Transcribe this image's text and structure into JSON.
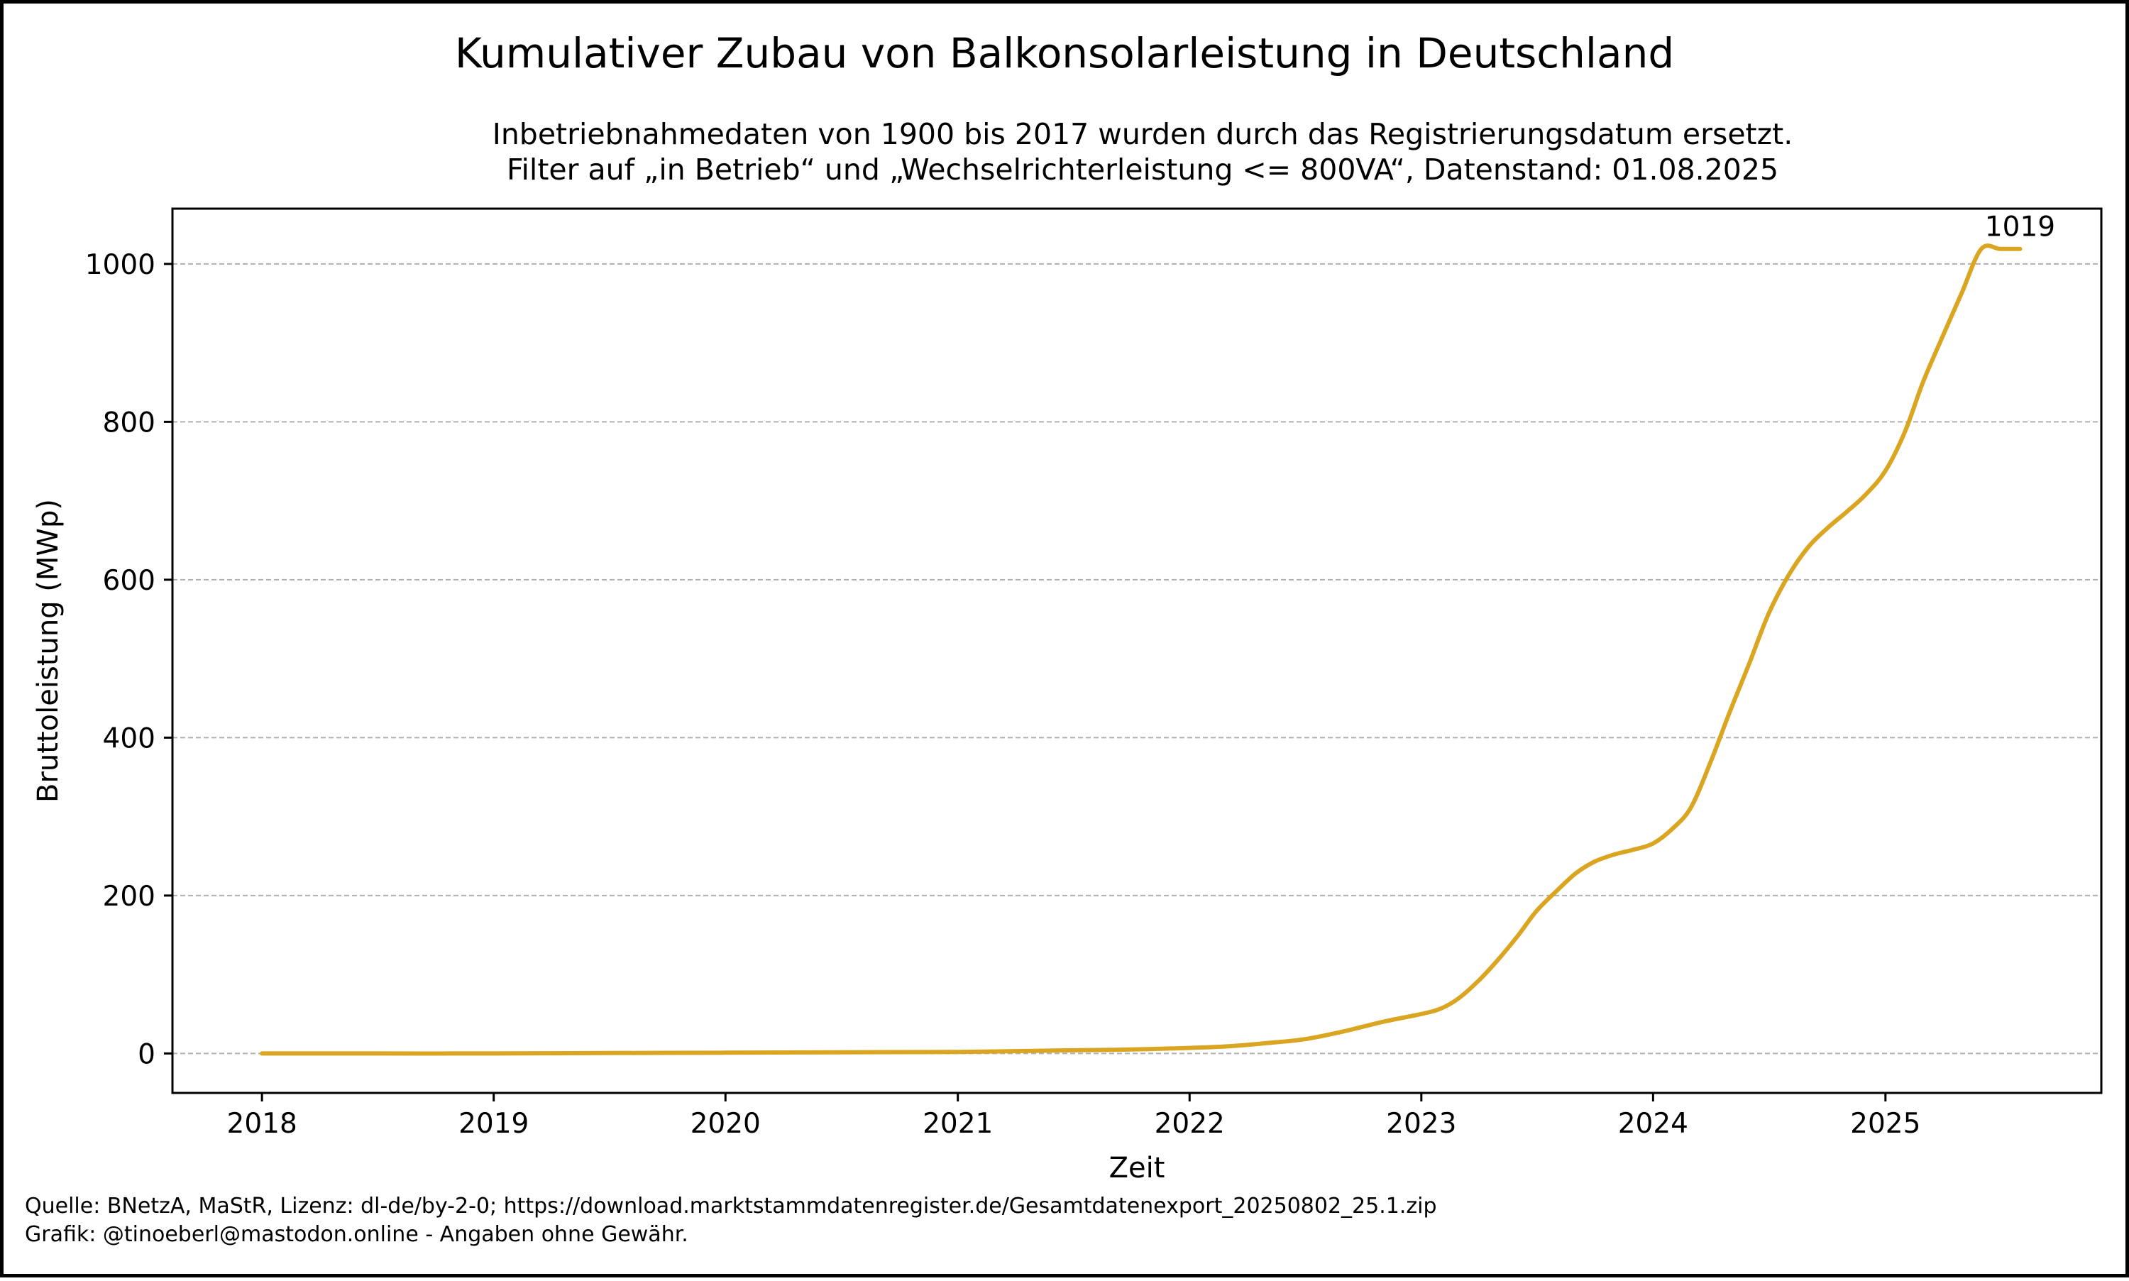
{
  "title": "Kumulativer Zubau von Balkonsolarleistung in Deutschland",
  "subtitle_lines": [
    "Inbetriebnahmedaten von 1900 bis 2017 wurden durch das Registrierungsdatum ersetzt.",
    "Filter auf „in Betrieb“ und „Wechselrichterleistung <= 800VA“, Datenstand: 01.08.2025"
  ],
  "footer_lines": [
    "Quelle: BNetzA, MaStR, Lizenz: dl-de/by-2-0; https://download.marktstammdatenregister.de/Gesamtdatenexport_20250802_25.1.zip",
    "Grafik: @tinoeberl@mastodon.online - Angaben ohne Gewähr."
  ],
  "colors": {
    "line": "#DAA520",
    "grid": "#b0b0b0",
    "frame": "#000000"
  },
  "chart_data": {
    "type": "line",
    "xlabel": "Zeit",
    "ylabel": "Bruttoleistung (MWp)",
    "x_ticks": [
      "2018",
      "2019",
      "2020",
      "2021",
      "2022",
      "2023",
      "2024",
      "2025"
    ],
    "y_ticks": [
      0,
      200,
      400,
      600,
      800,
      1000
    ],
    "xlim": [
      "2017-08-13",
      "2025-12-07"
    ],
    "ylim": [
      -50,
      1070
    ],
    "grid": "y",
    "end_label": "1019",
    "series": [
      {
        "x": [
          "2018-01-01",
          "2018-07-01",
          "2019-01-01",
          "2019-07-01",
          "2020-01-01",
          "2020-07-01",
          "2021-01-01",
          "2021-07-01",
          "2021-10-01",
          "2022-01-01",
          "2022-03-01",
          "2022-05-01",
          "2022-07-01",
          "2022-09-01",
          "2022-11-01",
          "2023-01-01",
          "2023-02-01",
          "2023-03-01",
          "2023-04-01",
          "2023-05-01",
          "2023-06-01",
          "2023-07-01",
          "2023-08-01",
          "2023-09-01",
          "2023-10-01",
          "2023-11-01",
          "2023-12-01",
          "2024-01-01",
          "2024-02-01",
          "2024-03-01",
          "2024-04-01",
          "2024-05-01",
          "2024-06-01",
          "2024-07-01",
          "2024-08-01",
          "2024-09-01",
          "2024-10-01",
          "2024-11-01",
          "2024-12-01",
          "2025-01-01",
          "2025-02-01",
          "2025-03-01",
          "2025-04-01",
          "2025-05-01",
          "2025-06-01",
          "2025-07-01",
          "2025-08-01"
        ],
        "y": [
          0,
          0,
          0,
          0.5,
          1,
          1.5,
          2,
          4,
          5,
          7,
          9,
          13,
          18,
          28,
          40,
          50,
          57,
          70,
          92,
          118,
          148,
          180,
          205,
          228,
          243,
          252,
          258,
          266,
          285,
          312,
          370,
          433,
          495,
          557,
          605,
          641,
          665,
          686,
          708,
          738,
          788,
          850,
          908,
          963,
          1019,
          1019,
          1019
        ]
      }
    ]
  }
}
